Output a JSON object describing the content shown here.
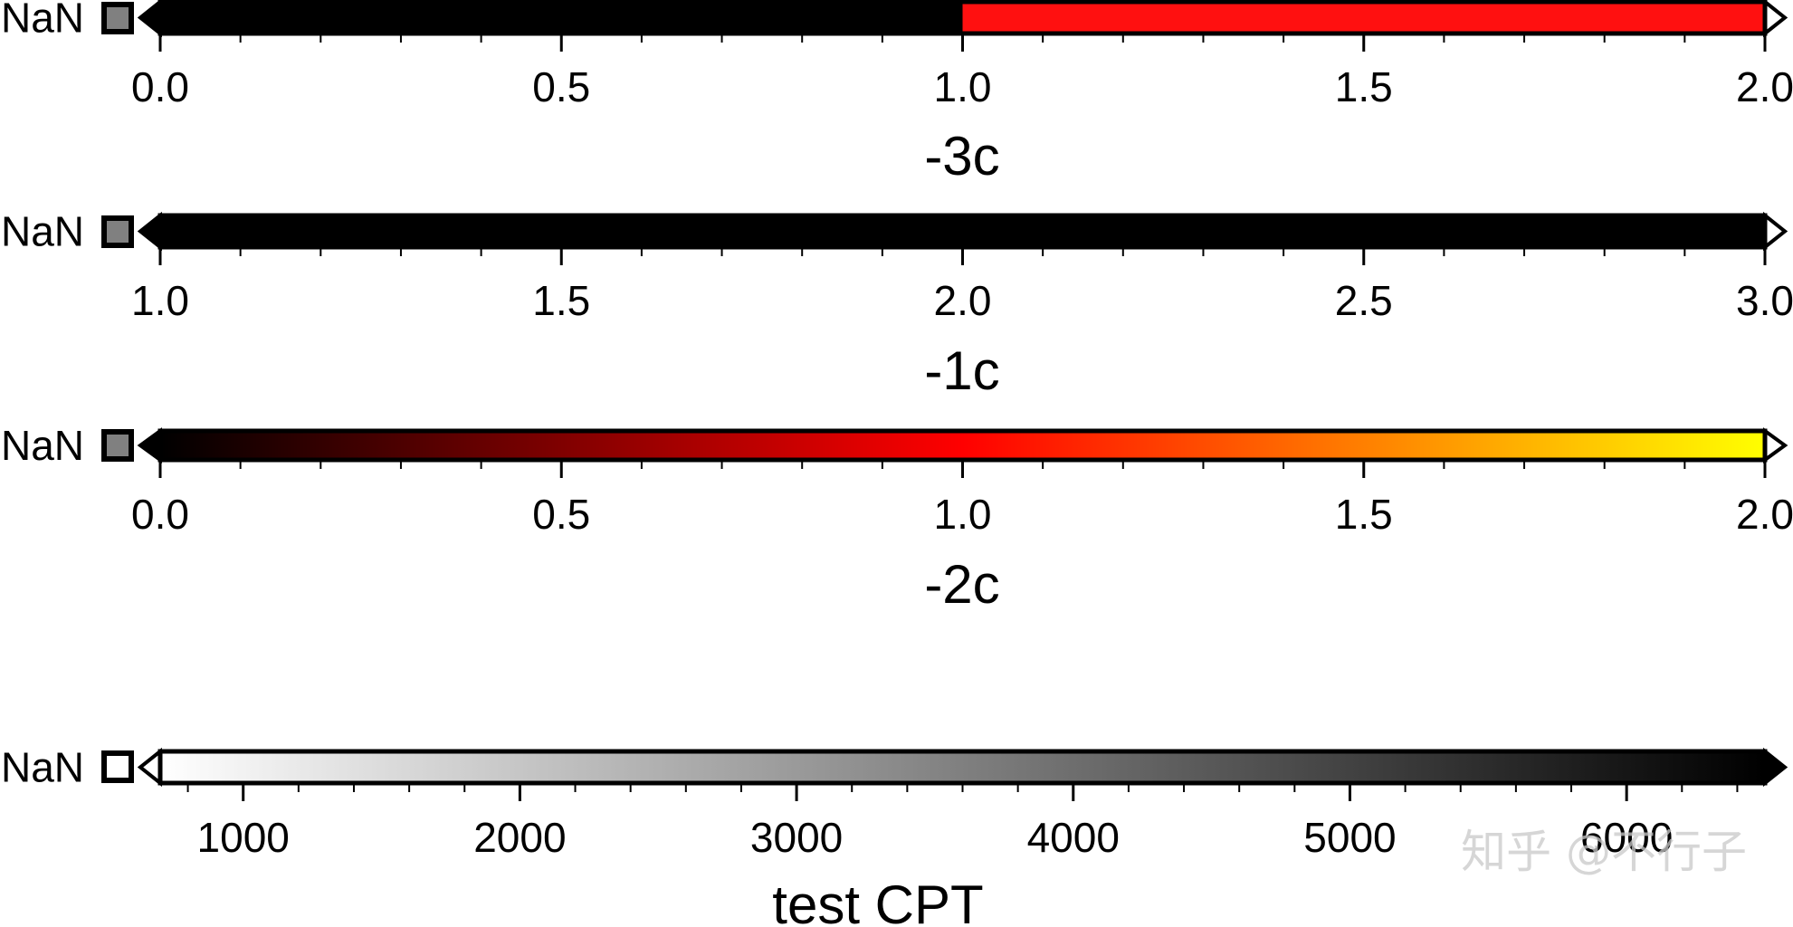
{
  "chart_data": [
    {
      "type": "colorbar",
      "nan_label": "NaN",
      "label": "-3c",
      "range": [
        0,
        2
      ],
      "ticks": [
        "0.0",
        "0.5",
        "1.0",
        "1.5",
        "2.0"
      ],
      "tick_values": [
        0,
        0.5,
        1.0,
        1.5,
        2.0
      ],
      "minor_tick_step": 0.1,
      "stops": [
        {
          "value": 0,
          "color": "#000000"
        },
        {
          "value": 1.0,
          "color": "#000000"
        },
        {
          "value": 1.0,
          "color": "#ff1010"
        },
        {
          "value": 2.0,
          "color": "#ff1010"
        }
      ],
      "background_color": "#000000",
      "foreground_color": "#ffffff",
      "nan_color": "#808080"
    },
    {
      "type": "colorbar",
      "nan_label": "NaN",
      "label": "-1c",
      "range": [
        1,
        3
      ],
      "ticks": [
        "1.0",
        "1.5",
        "2.0",
        "2.5",
        "3.0"
      ],
      "tick_values": [
        1.0,
        1.5,
        2.0,
        2.5,
        3.0
      ],
      "minor_tick_step": 0.1,
      "stops": [
        {
          "value": 1.0,
          "color": "#000000"
        },
        {
          "value": 3.0,
          "color": "#000000"
        }
      ],
      "background_color": "#000000",
      "foreground_color": "#ffffff",
      "nan_color": "#808080"
    },
    {
      "type": "colorbar",
      "nan_label": "NaN",
      "label": "-2c",
      "range": [
        0,
        2
      ],
      "ticks": [
        "0.0",
        "0.5",
        "1.0",
        "1.5",
        "2.0"
      ],
      "tick_values": [
        0,
        0.5,
        1.0,
        1.5,
        2.0
      ],
      "minor_tick_step": 0.1,
      "stops": [
        {
          "value": 0,
          "color": "#000000"
        },
        {
          "value": 1.0,
          "color": "#ff0000"
        },
        {
          "value": 2.0,
          "color": "#ffff00"
        }
      ],
      "background_color": "#000000",
      "foreground_color": "#ffffff",
      "nan_color": "#808080"
    },
    {
      "type": "colorbar",
      "nan_label": "NaN",
      "label": "test CPT",
      "range": [
        700,
        6500
      ],
      "ticks": [
        "1000",
        "2000",
        "3000",
        "4000",
        "5000",
        "6000"
      ],
      "tick_values": [
        1000,
        2000,
        3000,
        4000,
        5000,
        6000
      ],
      "minor_tick_step": 200,
      "stops": [
        {
          "value": 700,
          "color": "#ffffff"
        },
        {
          "value": 6500,
          "color": "#000000"
        }
      ],
      "background_color": "#ffffff",
      "foreground_color": "#000000",
      "nan_color": "#ffffff"
    }
  ],
  "watermark": "知乎 @不行子"
}
